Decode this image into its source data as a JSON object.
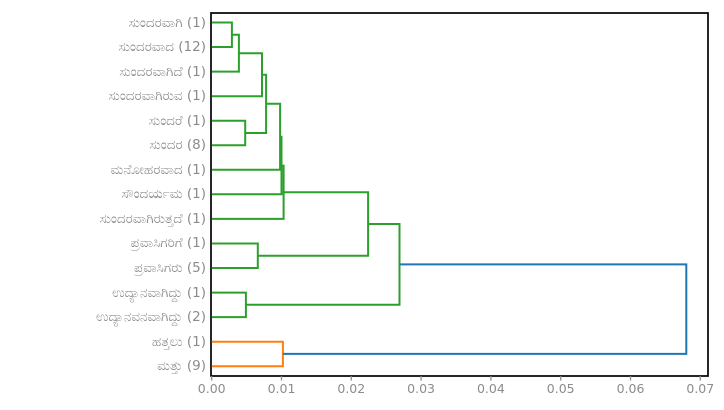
{
  "figure": {
    "background": "#ffffff",
    "axis_box_color": "#000000",
    "tick_color": "#8c8c8c",
    "label_color": "#8c8c8c"
  },
  "chart_data": {
    "type": "dendrogram",
    "orientation": "right-rooted, leaves on left",
    "title": "",
    "xlabel": "",
    "ylabel": "",
    "grid": false,
    "xlim": [
      0.0,
      0.0712
    ],
    "x_ticks": [
      0.0,
      0.01,
      0.02,
      0.03,
      0.04,
      0.05,
      0.06,
      0.07
    ],
    "x_tick_labels": [
      "0.00",
      "0.01",
      "0.02",
      "0.03",
      "0.04",
      "0.05",
      "0.06",
      "0.07"
    ],
    "palette": {
      "cluster_green": "#2ca02c",
      "cluster_orange": "#ff7f0e",
      "above_threshold_blue": "#1f77b4"
    },
    "leaves": [
      {
        "label": "ಸುಂದರವಾಗಿ",
        "count": 1
      },
      {
        "label": "ಸುಂದರವಾದ",
        "count": 12
      },
      {
        "label": "ಸುಂದರವಾಗಿದೆ",
        "count": 1
      },
      {
        "label": "ಸುಂದರವಾಗಿರುವ",
        "count": 1
      },
      {
        "label": "ಸುಂದರೆ",
        "count": 1
      },
      {
        "label": "ಸುಂದರ",
        "count": 8
      },
      {
        "label": "ಮನೋಹರವಾದ",
        "count": 1
      },
      {
        "label": "ಸೌಂದರ್ಯಮ",
        "count": 1
      },
      {
        "label": "ಸುಂದರವಾಗಿರುತ್ತದೆ",
        "count": 1
      },
      {
        "label": "ಪ್ರವಾಸಿಗರಿಗೆ",
        "count": 1
      },
      {
        "label": "ಪ್ರವಾಸಿಗರು",
        "count": 5
      },
      {
        "label": "ಉದ್ಯಾನವಾಗಿದ್ದು",
        "count": 1
      },
      {
        "label": "ಉದ್ಯಾನವನವಾಗಿದ್ದು",
        "count": 2
      },
      {
        "label": "ಹತ್ತಲು",
        "count": 1
      },
      {
        "label": "ಮತ್ತು",
        "count": 9
      }
    ],
    "merges": [
      {
        "id": "M0",
        "children": [
          "L0",
          "L1"
        ],
        "distance": 0.0029,
        "color": "cluster_green"
      },
      {
        "id": "M1",
        "children": [
          "M0",
          "L2"
        ],
        "distance": 0.0039,
        "color": "cluster_green"
      },
      {
        "id": "M2",
        "children": [
          "M1",
          "L3"
        ],
        "distance": 0.0072,
        "color": "cluster_green"
      },
      {
        "id": "M3",
        "children": [
          "L4",
          "L5"
        ],
        "distance": 0.0048,
        "color": "cluster_green"
      },
      {
        "id": "M4",
        "children": [
          "M2",
          "M3"
        ],
        "distance": 0.0078,
        "color": "cluster_green"
      },
      {
        "id": "M5",
        "children": [
          "M4",
          "L6"
        ],
        "distance": 0.0098,
        "color": "cluster_green"
      },
      {
        "id": "M6",
        "children": [
          "M5",
          "L7"
        ],
        "distance": 0.01,
        "color": "cluster_green"
      },
      {
        "id": "M7",
        "children": [
          "M6",
          "L8"
        ],
        "distance": 0.0103,
        "color": "cluster_green"
      },
      {
        "id": "M8",
        "children": [
          "L9",
          "L10"
        ],
        "distance": 0.0066,
        "color": "cluster_green"
      },
      {
        "id": "M9",
        "children": [
          "M7",
          "M8"
        ],
        "distance": 0.0224,
        "color": "cluster_green"
      },
      {
        "id": "M10",
        "children": [
          "L11",
          "L12"
        ],
        "distance": 0.0049,
        "color": "cluster_green"
      },
      {
        "id": "M11",
        "children": [
          "M9",
          "M10"
        ],
        "distance": 0.0269,
        "color": "cluster_green"
      },
      {
        "id": "M12",
        "children": [
          "L13",
          "L14"
        ],
        "distance": 0.0102,
        "color": "cluster_orange"
      },
      {
        "id": "M13",
        "children": [
          "M11",
          "M12"
        ],
        "distance": 0.068,
        "color": "above_threshold_blue"
      }
    ]
  }
}
